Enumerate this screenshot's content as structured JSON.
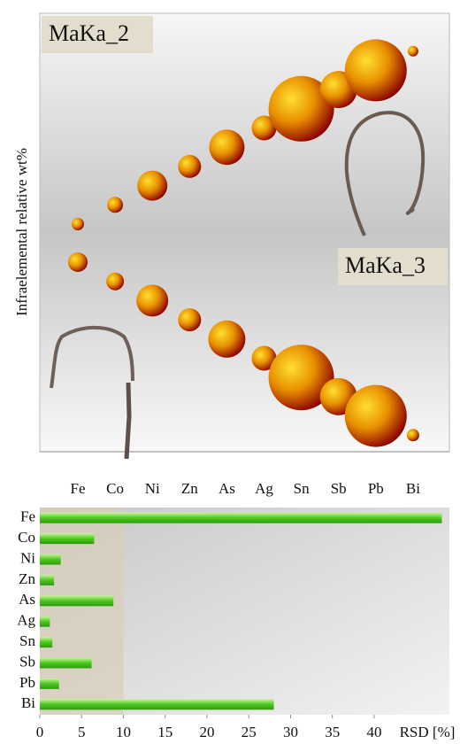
{
  "chart_data": [
    {
      "type": "bubble",
      "y_label": "Infraelemental relative wt%",
      "categories": [
        "Fe",
        "Co",
        "Ni",
        "Zn",
        "As",
        "Ag",
        "Sn",
        "Sb",
        "Pb",
        "Bi"
      ],
      "colors": [
        "#ffe030",
        "#e89000",
        "#8a0000"
      ],
      "series": [
        {
          "name": "MaKa_2",
          "values": [
            7,
            9,
            17,
            13,
            20,
            14,
            37,
            21,
            35,
            6
          ]
        },
        {
          "name": "MaKa_3",
          "values": [
            11,
            10,
            18,
            13,
            21,
            14,
            37,
            21,
            35,
            7
          ]
        }
      ]
    },
    {
      "type": "hbar",
      "x_label": "RSD [%]",
      "categories": [
        "Fe",
        "Co",
        "Ni",
        "Zn",
        "As",
        "Ag",
        "Sn",
        "Sb",
        "Pb",
        "Bi"
      ],
      "values": [
        48.1,
        6.5,
        2.5,
        1.7,
        8.8,
        1.2,
        1.5,
        6.2,
        2.3,
        28.0
      ],
      "color": "#4cc81e",
      "highlight_xlim": [
        0,
        10
      ],
      "xlim": [
        0,
        49
      ],
      "xticks": [
        0,
        5,
        10,
        15,
        20,
        25,
        30,
        35,
        40
      ]
    }
  ]
}
